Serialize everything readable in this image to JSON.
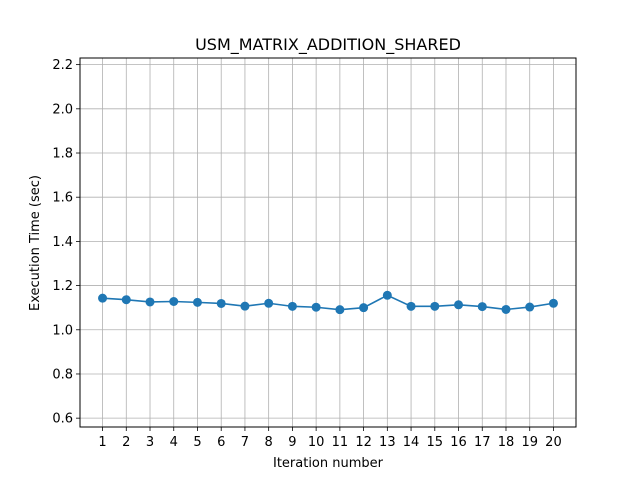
{
  "chart_data": {
    "type": "line",
    "title": "USM_MATRIX_ADDITION_SHARED",
    "xlabel": "Iteration number",
    "ylabel": "Execution Time (sec)",
    "x": [
      1,
      2,
      3,
      4,
      5,
      6,
      7,
      8,
      9,
      10,
      11,
      12,
      13,
      14,
      15,
      16,
      17,
      18,
      19,
      20
    ],
    "x_ticks": [
      "1",
      "2",
      "3",
      "4",
      "5",
      "6",
      "7",
      "8",
      "9",
      "10",
      "11",
      "12",
      "13",
      "14",
      "15",
      "16",
      "17",
      "18",
      "19",
      "20"
    ],
    "y_ticks": [
      "0.6",
      "0.8",
      "1.0",
      "1.2",
      "1.4",
      "1.6",
      "1.8",
      "2.0",
      "2.2"
    ],
    "ylim": [
      0.56,
      2.23
    ],
    "xlim": [
      0.05,
      20.95
    ],
    "grid": true,
    "series": [
      {
        "values": [
          1.143,
          1.136,
          1.126,
          1.128,
          1.124,
          1.119,
          1.107,
          1.12,
          1.106,
          1.102,
          1.091,
          1.1,
          1.156,
          1.106,
          1.106,
          1.113,
          1.105,
          1.092,
          1.103,
          1.12
        ],
        "color": "#1f77b4",
        "marker": "circle"
      }
    ]
  }
}
